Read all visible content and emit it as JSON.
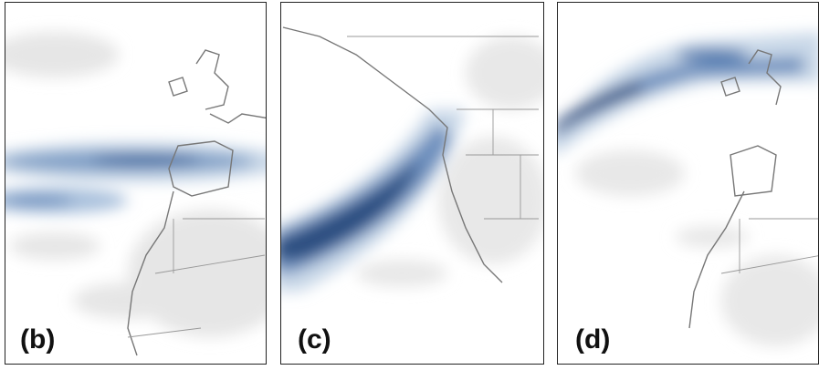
{
  "panels": [
    {
      "label": "(b)"
    },
    {
      "label": "(c)"
    },
    {
      "label": "(d)"
    }
  ]
}
